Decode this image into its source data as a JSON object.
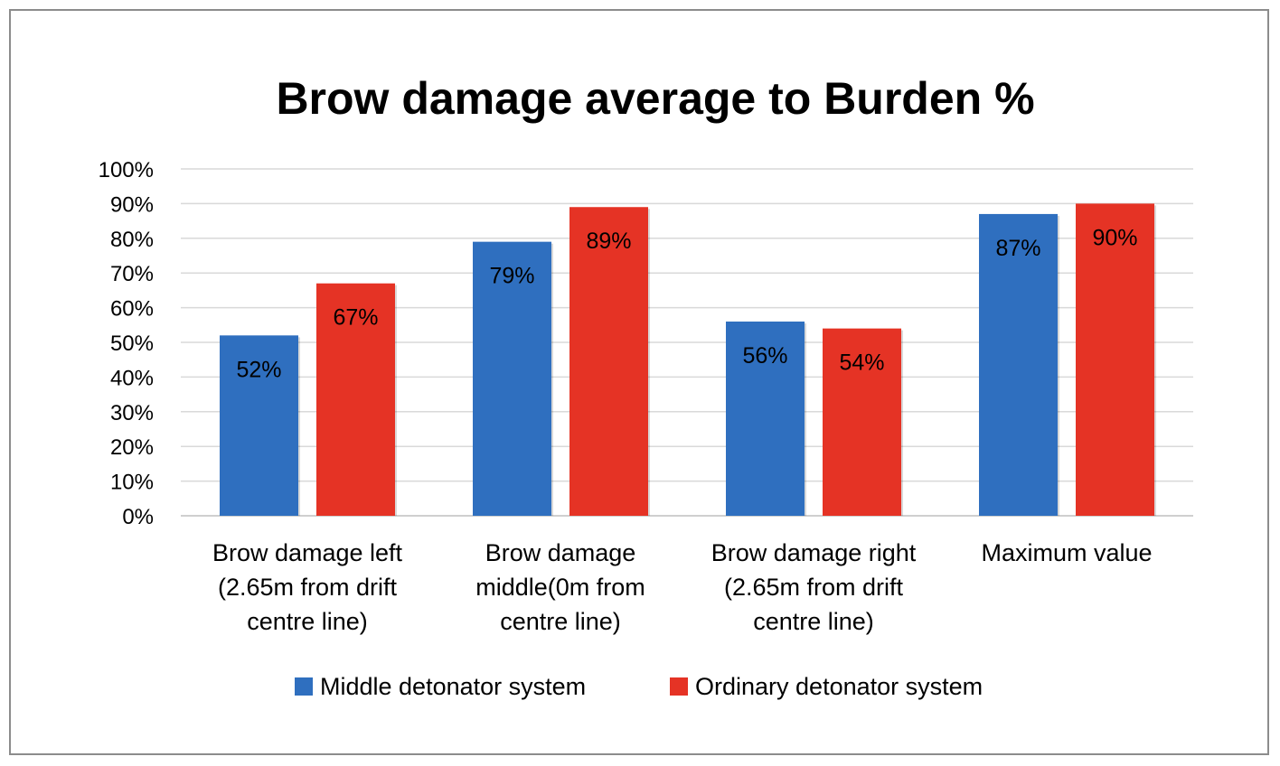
{
  "chart_data": {
    "type": "bar",
    "title": "Brow damage average to Burden %",
    "categories": [
      [
        "Brow damage left",
        "(2.65m from drift",
        "centre line)"
      ],
      [
        "Brow damage",
        "middle(0m from",
        "centre line)"
      ],
      [
        "Brow damage right",
        "(2.65m from drift",
        "centre line)"
      ],
      [
        "Maximum value"
      ]
    ],
    "series": [
      {
        "name": "Middle detonator system",
        "color": "#2f6fbf",
        "values": [
          52,
          79,
          56,
          87
        ],
        "labels": [
          "52%",
          "79%",
          "56%",
          "87%"
        ]
      },
      {
        "name": "Ordinary detonator system",
        "color": "#e53325",
        "values": [
          67,
          89,
          54,
          90
        ],
        "labels": [
          "67%",
          "89%",
          "54%",
          "90%"
        ]
      }
    ],
    "ylim": [
      0,
      100
    ],
    "yticks": [
      "0%",
      "10%",
      "20%",
      "30%",
      "40%",
      "50%",
      "60%",
      "70%",
      "80%",
      "90%",
      "100%"
    ],
    "xlabel": "",
    "ylabel": "",
    "grid": true,
    "legend": "bottom"
  }
}
